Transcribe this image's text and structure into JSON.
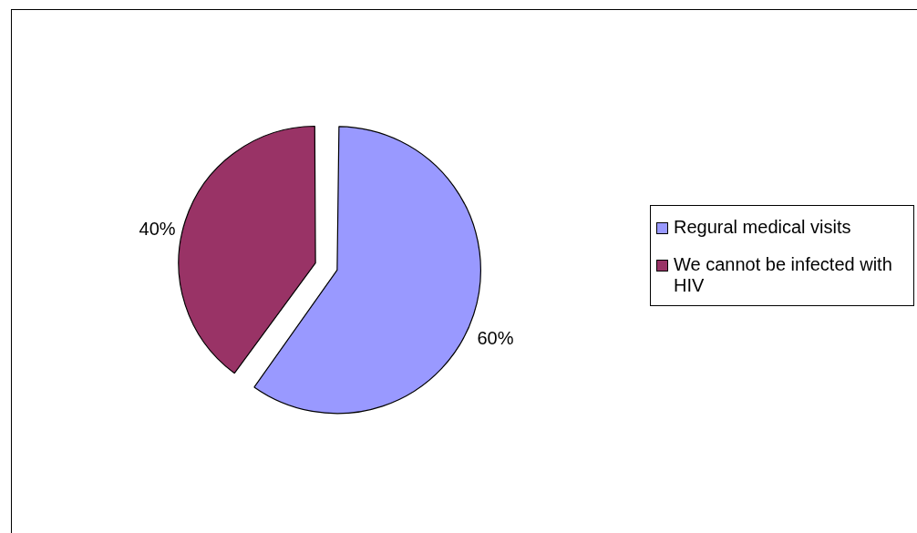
{
  "chart_data": {
    "type": "pie",
    "categories": [
      "Regural medical visits",
      "We cannot be infected with HIV"
    ],
    "values": [
      60,
      40
    ],
    "colors": [
      "#9999ff",
      "#993366"
    ],
    "value_labels": [
      "60%",
      "40%"
    ],
    "legend": "right"
  }
}
